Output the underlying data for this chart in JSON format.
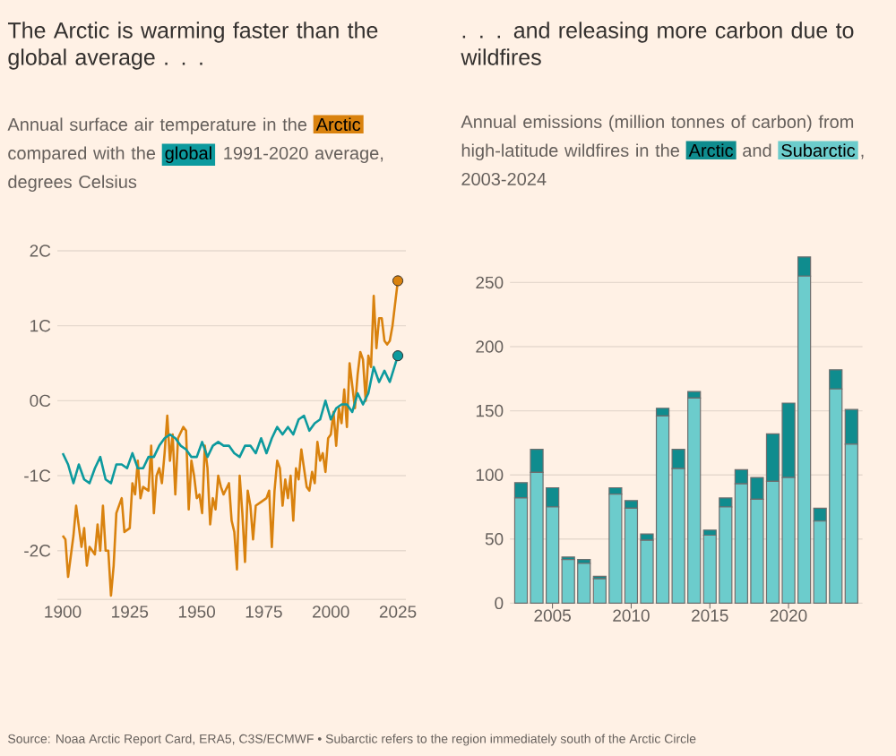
{
  "chart_data": [
    {
      "type": "line",
      "title": "The Arctic is warming faster than the global average . . .",
      "subtitle": "Annual surface air temperature in the",
      "annotations": [
        "compared with the",
        "1991-2020 average, degrees Celsius"
      ],
      "legend": "top",
      "grid": "y",
      "xlim": [
        1898,
        2028
      ],
      "xticks": [
        1900,
        1925,
        1950,
        1975,
        2000,
        2025
      ],
      "ylim": [
        -2.65,
        2
      ],
      "yticks": [
        {
          "value": -2,
          "label": "-2C"
        },
        {
          "value": -1,
          "label": "-1C"
        },
        {
          "value": 0,
          "label": "0C"
        },
        {
          "value": 1,
          "label": "1C"
        },
        {
          "value": 2,
          "label": "2C"
        }
      ],
      "series": [
        {
          "name": "Arctic",
          "color": "#d9820e",
          "x": [
            1900,
            1901,
            1902,
            1904,
            1905,
            1907,
            1908,
            1909,
            1910,
            1912,
            1913,
            1914,
            1915,
            1916,
            1917,
            1918,
            1919,
            1920,
            1922,
            1923,
            1925,
            1926,
            1927,
            1928,
            1929,
            1930,
            1932,
            1933,
            1934,
            1935,
            1936,
            1937,
            1938,
            1939,
            1940,
            1941,
            1942,
            1943,
            1945,
            1946,
            1947,
            1948,
            1949,
            1950,
            1951,
            1952,
            1953,
            1954,
            1955,
            1956,
            1957,
            1958,
            1959,
            1960,
            1962,
            1963,
            1964,
            1965,
            1966,
            1967,
            1968,
            1969,
            1970,
            1971,
            1972,
            1974,
            1976,
            1977,
            1978,
            1979,
            1980,
            1981,
            1982,
            1983,
            1984,
            1985,
            1986,
            1987,
            1988,
            1989,
            1990,
            1991,
            1992,
            1993,
            1994,
            1995,
            1996,
            1997,
            1998,
            1999,
            2000,
            2001,
            2002,
            2003,
            2004,
            2005,
            2006,
            2007,
            2008,
            2009,
            2010,
            2011,
            2012,
            2013,
            2014,
            2015,
            2016,
            2017,
            2018,
            2019,
            2020,
            2021,
            2022,
            2023,
            2025
          ],
          "values": [
            -1.8,
            -1.85,
            -2.35,
            -1.8,
            -1.4,
            -1.95,
            -1.7,
            -2.2,
            -1.95,
            -2.05,
            -1.65,
            -2.0,
            -1.4,
            -2.0,
            -2.0,
            -2.6,
            -2.2,
            -1.5,
            -1.3,
            -1.75,
            -1.7,
            -1.1,
            -1.25,
            -0.8,
            -1.3,
            -1.15,
            -1.2,
            -0.6,
            -1.5,
            -1.0,
            -0.9,
            -1.1,
            -0.7,
            -0.2,
            -0.8,
            -0.45,
            -1.25,
            -0.5,
            -0.35,
            -0.4,
            -1.45,
            -0.8,
            -1.0,
            -1.3,
            -1.25,
            -1.5,
            -0.6,
            -0.9,
            -1.65,
            -1.3,
            -1.45,
            -1.0,
            -1.15,
            -1.25,
            -1.1,
            -1.6,
            -1.75,
            -2.25,
            -1.0,
            -1.5,
            -2.15,
            -1.2,
            -1.4,
            -1.85,
            -1.4,
            -1.35,
            -1.3,
            -1.2,
            -1.95,
            -1.2,
            -0.8,
            -0.9,
            -1.4,
            -1.05,
            -1.3,
            -1.0,
            -1.6,
            -0.9,
            -1.05,
            -0.65,
            -0.9,
            -1.15,
            -1.2,
            -0.95,
            -1.1,
            -0.55,
            -0.8,
            -0.7,
            -0.95,
            -0.5,
            -0.45,
            -0.15,
            -0.6,
            -0.1,
            -0.3,
            0.15,
            -0.35,
            0.5,
            0.2,
            -0.1,
            0.35,
            0.65,
            0.55,
            0.0,
            0.6,
            0.45,
            1.4,
            0.7,
            1.1,
            1.1,
            0.8,
            0.75,
            0.8,
            1.0,
            1.6
          ]
        },
        {
          "name": "global",
          "color": "#0d9a9e",
          "x": [
            1900,
            1902,
            1904,
            1906,
            1908,
            1910,
            1912,
            1914,
            1916,
            1918,
            1920,
            1922,
            1924,
            1926,
            1928,
            1930,
            1932,
            1934,
            1936,
            1938,
            1940,
            1942,
            1944,
            1946,
            1948,
            1950,
            1952,
            1954,
            1956,
            1958,
            1960,
            1962,
            1964,
            1966,
            1968,
            1970,
            1972,
            1974,
            1976,
            1978,
            1980,
            1982,
            1984,
            1986,
            1988,
            1990,
            1992,
            1994,
            1996,
            1998,
            2000,
            2002,
            2004,
            2006,
            2008,
            2010,
            2012,
            2014,
            2016,
            2018,
            2020,
            2022,
            2025
          ],
          "values": [
            -0.7,
            -0.85,
            -1.1,
            -0.85,
            -1.05,
            -1.1,
            -0.9,
            -0.75,
            -1.05,
            -1.1,
            -0.85,
            -0.85,
            -0.9,
            -0.7,
            -0.9,
            -0.9,
            -0.75,
            -0.75,
            -0.6,
            -0.5,
            -0.45,
            -0.5,
            -0.6,
            -0.65,
            -0.75,
            -0.75,
            -0.55,
            -0.75,
            -0.6,
            -0.55,
            -0.6,
            -0.6,
            -0.7,
            -0.75,
            -0.6,
            -0.6,
            -0.7,
            -0.5,
            -0.7,
            -0.5,
            -0.35,
            -0.45,
            -0.35,
            -0.45,
            -0.25,
            -0.2,
            -0.4,
            -0.3,
            -0.25,
            0.0,
            -0.25,
            -0.1,
            -0.05,
            -0.05,
            -0.15,
            0.1,
            -0.05,
            0.1,
            0.45,
            0.25,
            0.4,
            0.25,
            0.6
          ]
        }
      ]
    },
    {
      "type": "bar",
      "stacked": true,
      "title": ". . . and releasing more carbon due to wildfires",
      "subtitle": "Annual emissions (million tonnes of carbon) from high-latitude wildfires in the",
      "annotations": [
        "and",
        ", 2003-2024",
        "Source: Noaa Arctic Report Card, ERA5, C3S/ECMWF • Subarctic refers to the region immediately south of the Arctic Circle"
      ],
      "legend": "top",
      "grid": "y",
      "x": [
        2003,
        2004,
        2005,
        2006,
        2007,
        2008,
        2009,
        2010,
        2011,
        2012,
        2013,
        2014,
        2015,
        2016,
        2017,
        2018,
        2019,
        2020,
        2021,
        2022,
        2023,
        2024
      ],
      "xlim": [
        2002.3,
        2024.7
      ],
      "xticks": [
        2005,
        2010,
        2015,
        2020
      ],
      "ylim": [
        0,
        270
      ],
      "yticks": [
        0,
        50,
        100,
        150,
        200,
        250
      ],
      "series": [
        {
          "name": "Subarctic",
          "color": "#6ccccc",
          "values": [
            82,
            102,
            75,
            34,
            31,
            19,
            85,
            74,
            49,
            146,
            105,
            160,
            53,
            75,
            93,
            81,
            95,
            98,
            255,
            64,
            167,
            124
          ]
        },
        {
          "name": "Arctic",
          "color": "#0f8c8e",
          "values": [
            12,
            18,
            15,
            2,
            3,
            2,
            5,
            6,
            5,
            6,
            15,
            5,
            4,
            7,
            11,
            17,
            37,
            58,
            15,
            10,
            15,
            27
          ]
        }
      ]
    }
  ]
}
